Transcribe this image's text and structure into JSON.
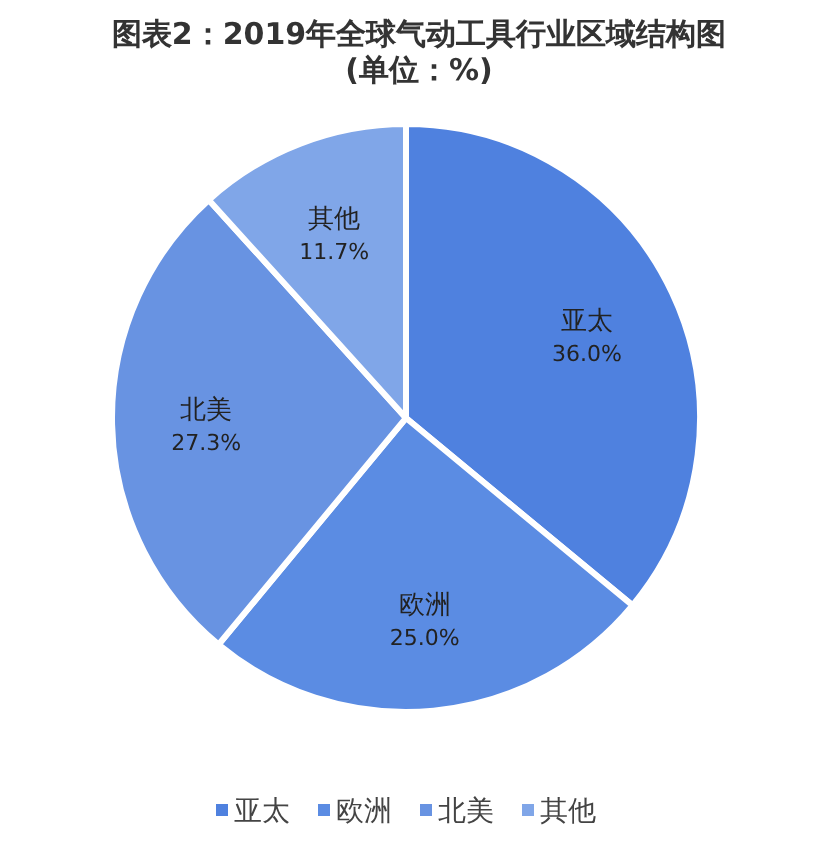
{
  "chart_data": {
    "type": "pie",
    "title": "图表2：2019年全球气动工具行业区域结构图",
    "subtitle": "(单位：%)",
    "categories": [
      "亚太",
      "欧洲",
      "北美",
      "其他"
    ],
    "values": [
      36.0,
      25.0,
      27.3,
      11.7
    ],
    "colors": [
      "#4f81df",
      "#5b8ce3",
      "#6893e2",
      "#80a6e8"
    ],
    "value_labels": [
      "36.0%",
      "25.0%",
      "27.3%",
      "11.7%"
    ],
    "legend": "bottom"
  }
}
